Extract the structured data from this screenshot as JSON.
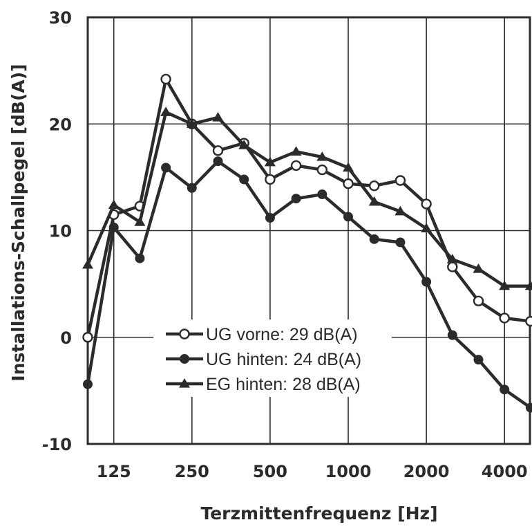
{
  "chart_data": {
    "type": "line",
    "title": "",
    "xlabel": "Terzmittenfrequenz [Hz]",
    "ylabel": "Installations-Schallpegel [dB(A)]",
    "ylim": [
      -10,
      30
    ],
    "y_ticks": [
      "30",
      "20",
      "10",
      "0",
      "-10"
    ],
    "x_ticks": [
      "125",
      "250",
      "500",
      "1000",
      "2000",
      "4000"
    ],
    "categories": [
      "100",
      "125",
      "160",
      "200",
      "250",
      "315",
      "400",
      "500",
      "630",
      "800",
      "1000",
      "1250",
      "1600",
      "2000",
      "2500",
      "3150",
      "4000",
      "5000"
    ],
    "grid": true,
    "legend_position": "lower-left inside plot",
    "series": [
      {
        "name": "UG vorne: 29 dB(A)",
        "marker": "open-circle",
        "color": "#2b2b2b",
        "values": [
          0,
          11.5,
          12.3,
          24.2,
          20,
          17.5,
          18.2,
          14.8,
          16.1,
          15.7,
          14.4,
          14.2,
          14.7,
          12.5,
          6.6,
          3.4,
          1.8,
          1.5
        ]
      },
      {
        "name": "UG hinten: 24 dB(A)",
        "marker": "filled-circle",
        "color": "#2b2b2b",
        "values": [
          -4.4,
          10.3,
          7.4,
          15.9,
          14,
          16.5,
          14.8,
          11.2,
          13,
          13.4,
          11.3,
          9.2,
          8.9,
          5.2,
          0.2,
          -2.1,
          -4.9,
          -6.6
        ]
      },
      {
        "name": "EG hinten: 28 dB(A)",
        "marker": "triangle",
        "color": "#2b2b2b",
        "values": [
          6.8,
          12.4,
          10.8,
          21.1,
          20,
          20.6,
          18,
          16.4,
          17.4,
          16.9,
          15.9,
          12.7,
          11.8,
          10.2,
          7.3,
          6.4,
          4.8,
          4.8
        ]
      }
    ]
  }
}
